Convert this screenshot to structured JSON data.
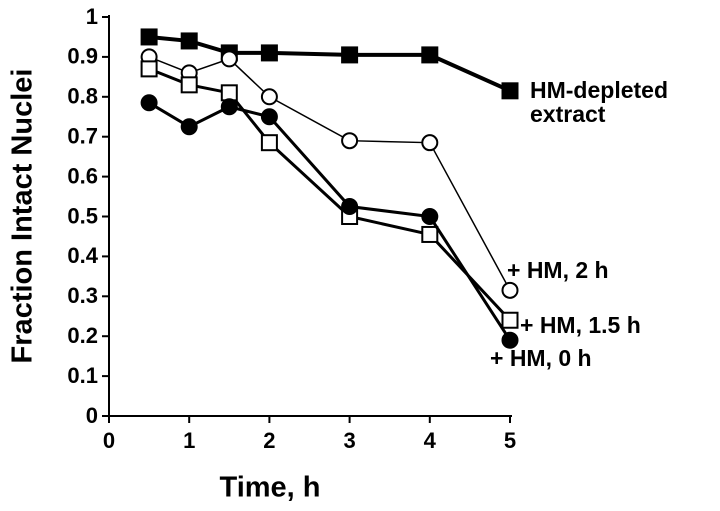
{
  "chart_data": {
    "type": "line",
    "x_label": "Time, h",
    "y_label": "Fraction Intact Nuclei",
    "xlim": [
      0,
      5
    ],
    "ylim": [
      0,
      1
    ],
    "xticks": [
      0,
      1,
      2,
      3,
      4,
      5
    ],
    "yticks": [
      0,
      0.1,
      0.2,
      0.3,
      0.4,
      0.5,
      0.6,
      0.7,
      0.8,
      0.9,
      1
    ],
    "x": [
      0.5,
      1,
      1.5,
      2,
      3,
      4,
      5
    ],
    "series": [
      {
        "name": "HM-depleted extract",
        "color": "#000000",
        "marker": "square",
        "filled": true,
        "values": [
          0.95,
          0.94,
          0.91,
          0.91,
          0.905,
          0.905,
          0.815
        ]
      },
      {
        "name": "+ HM, 2 h",
        "color": "#000000",
        "marker": "circle",
        "filled": false,
        "values": [
          0.9,
          0.86,
          0.895,
          0.8,
          0.69,
          0.685,
          0.315
        ]
      },
      {
        "name": "+ HM, 1.5 h",
        "color": "#000000",
        "marker": "square",
        "filled": false,
        "values": [
          0.87,
          0.83,
          0.81,
          0.685,
          0.5,
          0.455,
          0.24
        ]
      },
      {
        "name": "+ HM, 0 h",
        "color": "#000000",
        "marker": "circle",
        "filled": true,
        "values": [
          0.785,
          0.725,
          0.775,
          0.75,
          0.525,
          0.5,
          0.19
        ]
      }
    ]
  }
}
